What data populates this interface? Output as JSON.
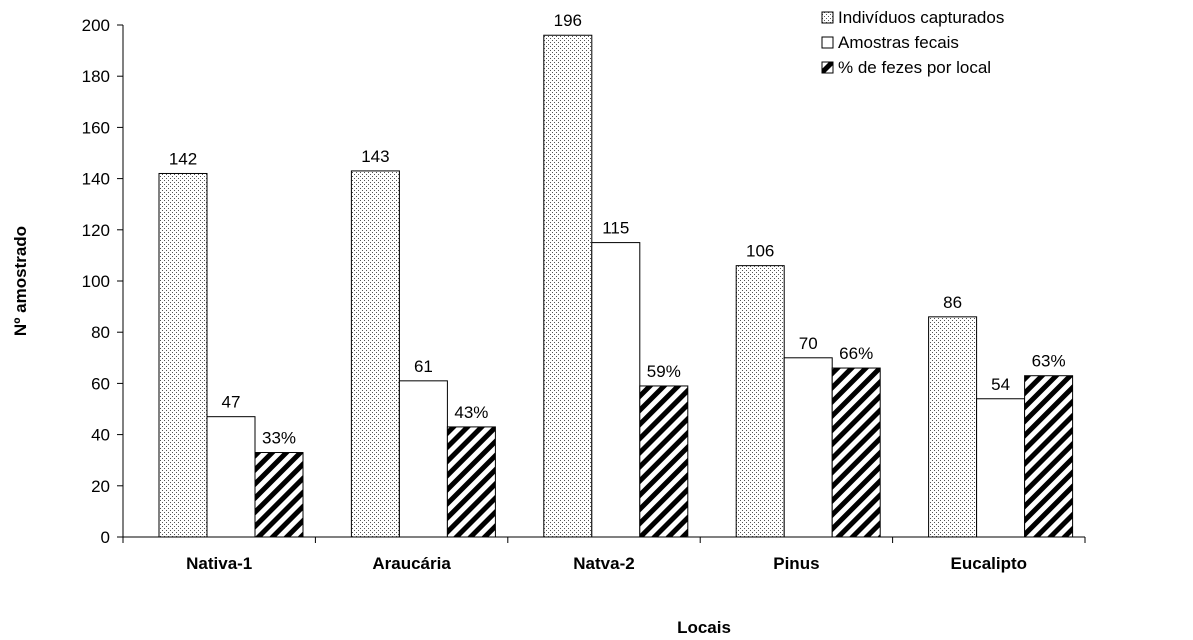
{
  "chart_data": {
    "type": "bar",
    "categories": [
      "Nativa-1",
      "Araucária",
      "Natva-2",
      "Pinus",
      "Eucalipto"
    ],
    "series": [
      {
        "name": "Indivíduos capturados",
        "values": [
          142,
          143,
          196,
          106,
          86
        ],
        "labels": [
          "142",
          "143",
          "196",
          "106",
          "86"
        ],
        "pattern": "dots"
      },
      {
        "name": "Amostras fecais",
        "values": [
          47,
          61,
          115,
          70,
          54
        ],
        "labels": [
          "47",
          "61",
          "115",
          "70",
          "54"
        ],
        "pattern": "white"
      },
      {
        "name": "% de fezes por local",
        "values": [
          33,
          43,
          59,
          66,
          63
        ],
        "labels": [
          "33%",
          "43%",
          "59%",
          "66%",
          "63%"
        ],
        "pattern": "diagonal"
      }
    ],
    "xlabel": "Locais",
    "ylabel": "Nº amostrado",
    "ylim": [
      0,
      200
    ],
    "yticks": [
      0,
      20,
      40,
      60,
      80,
      100,
      120,
      140,
      160,
      180,
      200
    ],
    "grid": false,
    "legend_position": "top-right"
  }
}
